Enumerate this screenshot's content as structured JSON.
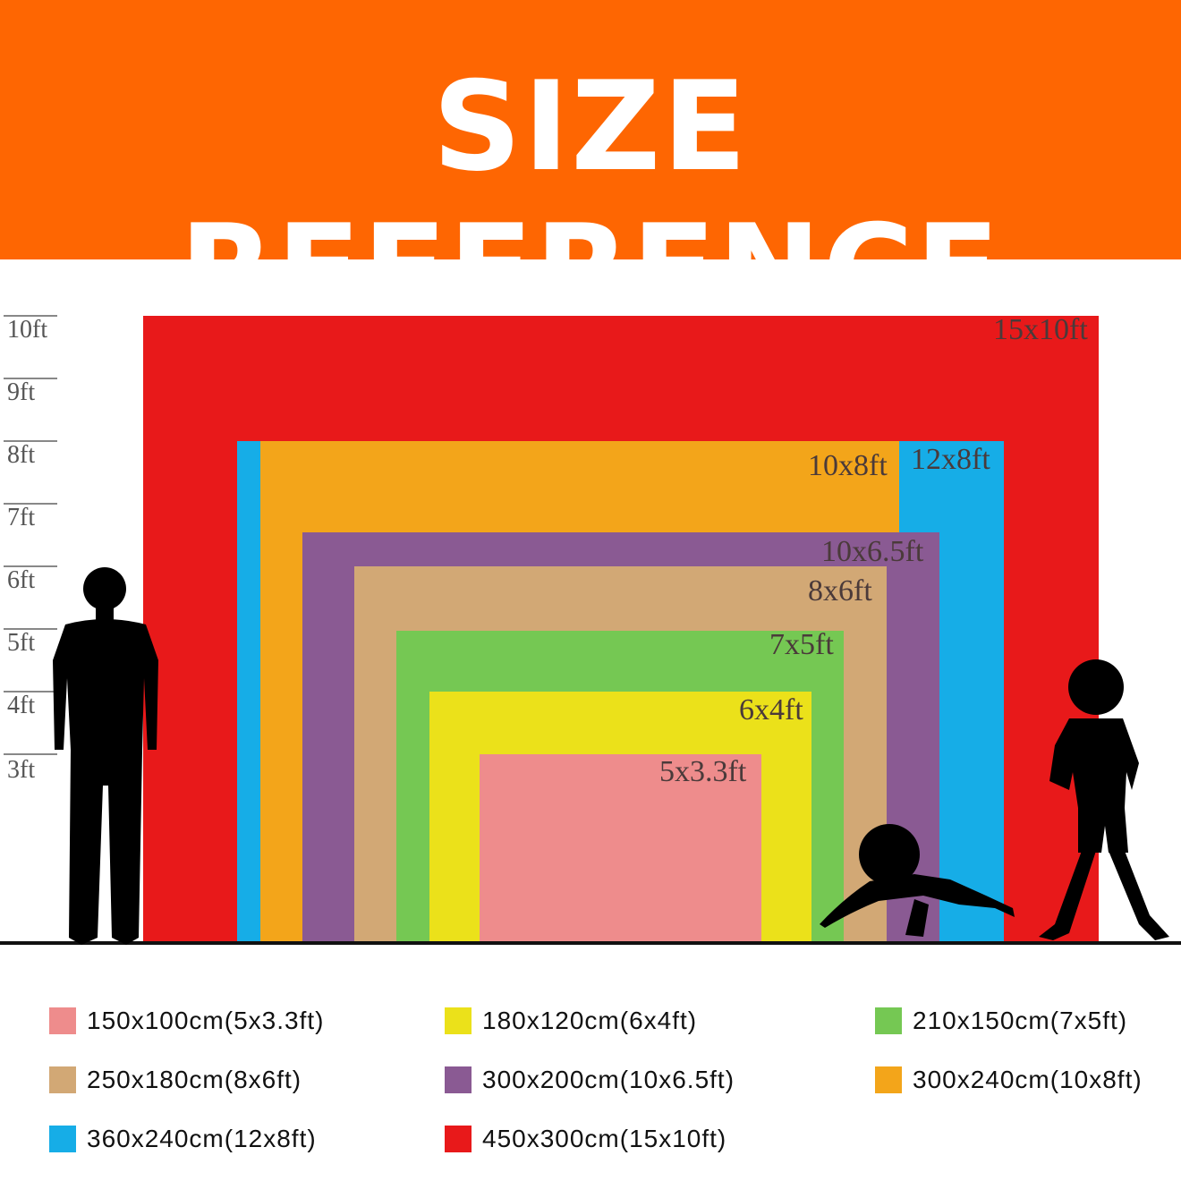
{
  "header": {
    "title": "SIZE REFERENCE",
    "background": "#FE6602"
  },
  "scale": [
    "10ft",
    "9ft",
    "8ft",
    "7ft",
    "6ft",
    "5ft",
    "4ft",
    "3ft"
  ],
  "backdrops": [
    {
      "label": "15x10ft",
      "color": "#E8191A"
    },
    {
      "label": "12x8ft",
      "color": "#16ADE7"
    },
    {
      "label": "10x8ft",
      "color": "#F3A51A"
    },
    {
      "label": "10x6.5ft",
      "color": "#8A5A93"
    },
    {
      "label": "8x6ft",
      "color": "#D2A875"
    },
    {
      "label": "7x5ft",
      "color": "#75C853"
    },
    {
      "label": "6x4ft",
      "color": "#EBE11A"
    },
    {
      "label": "5x3.3ft",
      "color": "#EE8C8C"
    }
  ],
  "silhouettes": [
    "adult-man",
    "crawling-baby",
    "child"
  ],
  "legend": [
    {
      "label": "150x100cm(5x3.3ft)",
      "color": "#EE8C8C"
    },
    {
      "label": "180x120cm(6x4ft)",
      "color": "#EBE11A"
    },
    {
      "label": "210x150cm(7x5ft)",
      "color": "#75C853"
    },
    {
      "label": "250x180cm(8x6ft)",
      "color": "#D2A875"
    },
    {
      "label": "300x200cm(10x6.5ft)",
      "color": "#8A5A93"
    },
    {
      "label": "300x240cm(10x8ft)",
      "color": "#F3A51A"
    },
    {
      "label": "360x240cm(12x8ft)",
      "color": "#16ADE7"
    },
    {
      "label": "450x300cm(15x10ft)",
      "color": "#E8191A"
    }
  ]
}
